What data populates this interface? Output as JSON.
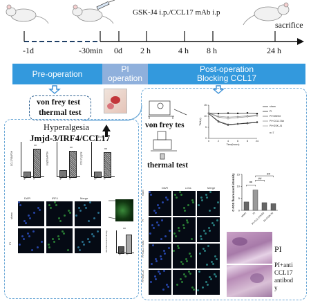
{
  "timeline": {
    "treatment": "GSK-J4 i.p./CCL17 mAb i.p",
    "endpoint": "sacrifice",
    "ticks": [
      "-1d",
      "-30min",
      "0d",
      "2 h",
      "4 h",
      "8 h",
      "24 h"
    ]
  },
  "phases": {
    "pre": "Pre-operation",
    "pi_line1": "PI",
    "pi_line2": "operation",
    "post_line1": "Post-operation",
    "post_line2": "Blocking CCL17"
  },
  "pre_tests": [
    "von frey test",
    "thermal test"
  ],
  "left_panel": {
    "title": "Hyperalgesia",
    "subtitle": "Jmjd-3/IRF4/CCL17",
    "mini_charts": [
      {
        "ylabel": "CCL17/GAPDH",
        "categories": [
          "sham",
          "PI"
        ],
        "values": [
          0.3,
          1.6
        ],
        "sig": "**"
      },
      {
        "ylabel": "Jmjd3/GAPDH",
        "categories": [
          "sham",
          "PI"
        ],
        "values": [
          0.35,
          1.5
        ],
        "sig": "**"
      },
      {
        "ylabel": "CCL17 pg/ml",
        "categories": [
          "sham",
          "PI"
        ],
        "values": [
          0.3,
          1.4
        ],
        "sig": "**",
        "n": "n=7"
      }
    ],
    "image_headers": [
      "DAPI",
      "IRF4",
      "Merge"
    ],
    "row_labels": [
      "sham",
      "PI"
    ],
    "quant_chart": {
      "ylabel": "IRF4 fluorescent intensity",
      "categories": [
        "sham",
        "PI"
      ],
      "values": [
        0.6,
        1.8
      ],
      "sig": "**"
    }
  },
  "right_panel": {
    "von_frey_label": "von frey tes",
    "thermal_label": "thermal test",
    "line_chart": {
      "type": "line",
      "ylabel": "TWL(s)",
      "xlabel": "Time(hours)",
      "x": [
        0,
        2,
        4,
        6,
        8,
        24
      ],
      "xticks": [
        "0",
        "2",
        "4",
        "6",
        "8",
        "24"
      ],
      "yticks": [
        "0",
        "5",
        "10",
        "15"
      ],
      "ylim": [
        0,
        15
      ],
      "series": [
        {
          "name": "sham",
          "values": [
            11.5,
            11.2,
            11.4,
            11.3,
            11.5,
            11.2
          ]
        },
        {
          "name": "PI",
          "values": [
            11.2,
            7.5,
            6.0,
            6.5,
            6.8,
            7.2
          ]
        },
        {
          "name": "PI+DMSO",
          "values": [
            11.3,
            7.8,
            6.3,
            6.6,
            7.0,
            7.4
          ]
        },
        {
          "name": "PI+CCL17Ab",
          "values": [
            11.4,
            9.6,
            9.0,
            9.4,
            9.8,
            10.2
          ]
        },
        {
          "name": "PI+GSK-J4",
          "values": [
            11.5,
            10.0,
            9.6,
            9.8,
            10.2,
            10.6
          ]
        }
      ],
      "n": "n=7"
    },
    "image_headers": [
      "DAPI",
      "c-fos",
      "Merge"
    ],
    "row_labels": [
      "sham",
      "PI",
      "PI+CCL17 mAb",
      "PI+GSK-J4"
    ],
    "bar_chart": {
      "type": "bar",
      "ylabel": "C-FOS fluorescent intensity",
      "categories": [
        "sham",
        "PI",
        "PI+CCL17mAb",
        "PI+GSK-J4"
      ],
      "values": [
        3.5,
        8.5,
        3.2,
        2.8
      ],
      "ylim": [
        0,
        15
      ],
      "yticks": [
        "0",
        "5",
        "10",
        "15"
      ],
      "sig": [
        "**",
        "##",
        "##"
      ]
    },
    "histology_labels": [
      "PI",
      "PI+anti",
      "CCL17",
      "antibod",
      "y"
    ]
  },
  "colors": {
    "phase_blue": "#3399dd",
    "phase_light": "#8fb0dc",
    "dashed_border": "#6aa7d6",
    "arrow_blue": "#3a8fd6"
  }
}
